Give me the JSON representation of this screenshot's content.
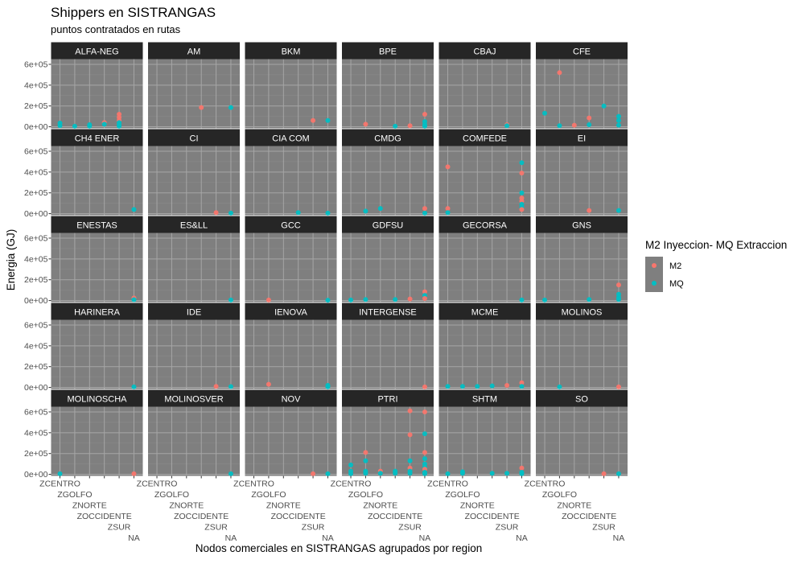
{
  "chart_data": {
    "type": "scatter",
    "title": "Shippers en SISTRANGAS",
    "subtitle": "puntos contratados en rutas",
    "xlabel": "Nodos comerciales en SISTRANGAS agrupados por region",
    "ylabel": "Energia (GJ)",
    "categories": [
      "ZCENTRO",
      "ZGOLFO",
      "ZNORTE",
      "ZOCCIDENTE",
      "ZSUR",
      "NA"
    ],
    "y_ticks": [
      "0e+00",
      "2e+05",
      "4e+05",
      "6e+05"
    ],
    "y_tick_values": [
      0,
      200000,
      400000,
      600000
    ],
    "ylim": [
      -15000,
      650000
    ],
    "legend": {
      "title": "M2 Inyeccion- MQ Extraccion",
      "position": "right",
      "items": [
        {
          "label": "M2",
          "color": "#F8766D"
        },
        {
          "label": "MQ",
          "color": "#00BFC4"
        }
      ]
    },
    "colors": {
      "M2": "#F8766D",
      "MQ": "#00BFC4",
      "panel": "#7f7f7f",
      "strip": "#262626"
    },
    "panels": [
      {
        "name": "ALFA-NEG",
        "points": [
          [
            0,
            "MQ",
            35000
          ],
          [
            0,
            "MQ",
            10000
          ],
          [
            1,
            "MQ",
            5000
          ],
          [
            2,
            "MQ",
            20000
          ],
          [
            2,
            "MQ",
            5000
          ],
          [
            3,
            "M2",
            40000
          ],
          [
            3,
            "MQ",
            25000
          ],
          [
            4,
            "M2",
            120000
          ],
          [
            4,
            "M2",
            90000
          ],
          [
            4,
            "M2",
            60000
          ],
          [
            4,
            "MQ",
            40000
          ],
          [
            4,
            "MQ",
            20000
          ],
          [
            4,
            "MQ",
            5000
          ]
        ]
      },
      {
        "name": "AM",
        "points": [
          [
            3,
            "M2",
            185000
          ],
          [
            5,
            "MQ",
            185000
          ]
        ]
      },
      {
        "name": "BKM",
        "points": [
          [
            4,
            "M2",
            60000
          ],
          [
            5,
            "MQ",
            60000
          ]
        ]
      },
      {
        "name": "BPE",
        "points": [
          [
            1,
            "M2",
            25000
          ],
          [
            3,
            "MQ",
            5000
          ],
          [
            4,
            "M2",
            10000
          ],
          [
            5,
            "M2",
            120000
          ],
          [
            5,
            "MQ",
            50000
          ],
          [
            5,
            "MQ",
            20000
          ],
          [
            5,
            "MQ",
            5000
          ]
        ]
      },
      {
        "name": "CBAJ",
        "points": [
          [
            4,
            "M2",
            20000
          ],
          [
            4,
            "MQ",
            10000
          ]
        ]
      },
      {
        "name": "CFE",
        "points": [
          [
            0,
            "MQ",
            130000
          ],
          [
            1,
            "M2",
            520000
          ],
          [
            1,
            "MQ",
            10000
          ],
          [
            2,
            "M2",
            15000
          ],
          [
            3,
            "M2",
            85000
          ],
          [
            3,
            "MQ",
            20000
          ],
          [
            4,
            "MQ",
            200000
          ],
          [
            5,
            "MQ",
            100000
          ],
          [
            5,
            "MQ",
            60000
          ],
          [
            5,
            "MQ",
            15000
          ]
        ]
      },
      {
        "name": "CH4 ENER",
        "points": [
          [
            5,
            "MQ",
            40000
          ]
        ]
      },
      {
        "name": "CI",
        "points": [
          [
            4,
            "M2",
            10000
          ],
          [
            5,
            "MQ",
            5000
          ]
        ]
      },
      {
        "name": "CIA COM",
        "points": [
          [
            3,
            "MQ",
            10000
          ],
          [
            5,
            "MQ",
            5000
          ]
        ]
      },
      {
        "name": "CMDG",
        "points": [
          [
            1,
            "MQ",
            25000
          ],
          [
            2,
            "MQ",
            50000
          ],
          [
            5,
            "M2",
            50000
          ],
          [
            5,
            "MQ",
            5000
          ]
        ]
      },
      {
        "name": "COMFEDE",
        "points": [
          [
            0,
            "M2",
            450000
          ],
          [
            0,
            "M2",
            50000
          ],
          [
            0,
            "MQ",
            10000
          ],
          [
            5,
            "MQ",
            490000
          ],
          [
            5,
            "M2",
            390000
          ],
          [
            5,
            "MQ",
            200000
          ],
          [
            5,
            "M2",
            150000
          ],
          [
            5,
            "M2",
            120000
          ],
          [
            5,
            "MQ",
            90000
          ],
          [
            5,
            "MQ",
            60000
          ],
          [
            5,
            "M2",
            40000
          ]
        ]
      },
      {
        "name": "EI",
        "points": [
          [
            3,
            "M2",
            30000
          ],
          [
            5,
            "MQ",
            30000
          ]
        ]
      },
      {
        "name": "ENESTAS",
        "points": [
          [
            5,
            "M2",
            25000
          ],
          [
            5,
            "MQ",
            8000
          ]
        ]
      },
      {
        "name": "ES&LL",
        "points": [
          [
            5,
            "MQ",
            5000
          ]
        ]
      },
      {
        "name": "GCC",
        "points": [
          [
            1,
            "M2",
            5000
          ],
          [
            5,
            "MQ",
            3000
          ]
        ]
      },
      {
        "name": "GDFSU",
        "points": [
          [
            0,
            "MQ",
            5000
          ],
          [
            1,
            "MQ",
            10000
          ],
          [
            3,
            "MQ",
            10000
          ],
          [
            4,
            "M2",
            15000
          ],
          [
            5,
            "M2",
            85000
          ],
          [
            5,
            "MQ",
            50000
          ],
          [
            5,
            "M2",
            20000
          ]
        ]
      },
      {
        "name": "GECORSA",
        "points": [
          [
            5,
            "MQ",
            5000
          ]
        ]
      },
      {
        "name": "GNS",
        "points": [
          [
            0,
            "MQ",
            5000
          ],
          [
            3,
            "MQ",
            10000
          ],
          [
            5,
            "M2",
            150000
          ],
          [
            5,
            "MQ",
            60000
          ],
          [
            5,
            "MQ",
            30000
          ],
          [
            5,
            "MQ",
            10000
          ]
        ]
      },
      {
        "name": "HARINERA",
        "points": [
          [
            5,
            "MQ",
            5000
          ]
        ]
      },
      {
        "name": "IDE",
        "points": [
          [
            4,
            "M2",
            10000
          ],
          [
            5,
            "MQ",
            8000
          ]
        ]
      },
      {
        "name": "IENOVA",
        "points": [
          [
            1,
            "M2",
            30000
          ],
          [
            5,
            "MQ",
            20000
          ],
          [
            5,
            "MQ",
            5000
          ]
        ]
      },
      {
        "name": "INTERGENSE",
        "points": [
          [
            5,
            "M2",
            5000
          ]
        ]
      },
      {
        "name": "MCME",
        "points": [
          [
            0,
            "MQ",
            10000
          ],
          [
            1,
            "MQ",
            10000
          ],
          [
            2,
            "MQ",
            10000
          ],
          [
            3,
            "MQ",
            15000
          ],
          [
            4,
            "M2",
            20000
          ],
          [
            5,
            "M2",
            45000
          ],
          [
            5,
            "MQ",
            10000
          ]
        ]
      },
      {
        "name": "MOLINOS",
        "points": [
          [
            1,
            "MQ",
            5000
          ],
          [
            5,
            "M2",
            5000
          ]
        ]
      },
      {
        "name": "MOLINOSCHA",
        "points": [
          [
            0,
            "MQ",
            5000
          ],
          [
            5,
            "M2",
            5000
          ]
        ]
      },
      {
        "name": "MOLINOSVER",
        "points": [
          [
            5,
            "MQ",
            5000
          ]
        ]
      },
      {
        "name": "NOV",
        "points": [
          [
            4,
            "M2",
            5000
          ],
          [
            5,
            "MQ",
            5000
          ]
        ]
      },
      {
        "name": "PTRI",
        "points": [
          [
            0,
            "MQ",
            90000
          ],
          [
            0,
            "MQ",
            30000
          ],
          [
            0,
            "MQ",
            5000
          ],
          [
            1,
            "M2",
            210000
          ],
          [
            1,
            "MQ",
            130000
          ],
          [
            1,
            "MQ",
            30000
          ],
          [
            1,
            "MQ",
            10000
          ],
          [
            2,
            "M2",
            30000
          ],
          [
            2,
            "MQ",
            10000
          ],
          [
            3,
            "MQ",
            30000
          ],
          [
            3,
            "MQ",
            10000
          ],
          [
            4,
            "M2",
            610000
          ],
          [
            4,
            "M2",
            380000
          ],
          [
            4,
            "MQ",
            130000
          ],
          [
            4,
            "M2",
            60000
          ],
          [
            4,
            "MQ",
            30000
          ],
          [
            4,
            "MQ",
            10000
          ],
          [
            5,
            "M2",
            600000
          ],
          [
            5,
            "MQ",
            390000
          ],
          [
            5,
            "M2",
            210000
          ],
          [
            5,
            "MQ",
            150000
          ],
          [
            5,
            "MQ",
            100000
          ],
          [
            5,
            "MQ",
            70000
          ],
          [
            5,
            "M2",
            50000
          ],
          [
            5,
            "MQ",
            20000
          ],
          [
            5,
            "MQ",
            5000
          ]
        ]
      },
      {
        "name": "SHTM",
        "points": [
          [
            0,
            "MQ",
            5000
          ],
          [
            1,
            "MQ",
            25000
          ],
          [
            1,
            "MQ",
            10000
          ],
          [
            3,
            "MQ",
            10000
          ],
          [
            4,
            "MQ",
            10000
          ],
          [
            5,
            "M2",
            60000
          ],
          [
            5,
            "MQ",
            20000
          ],
          [
            5,
            "MQ",
            5000
          ]
        ]
      },
      {
        "name": "SO",
        "points": [
          [
            4,
            "M2",
            5000
          ],
          [
            5,
            "MQ",
            5000
          ]
        ]
      }
    ]
  }
}
